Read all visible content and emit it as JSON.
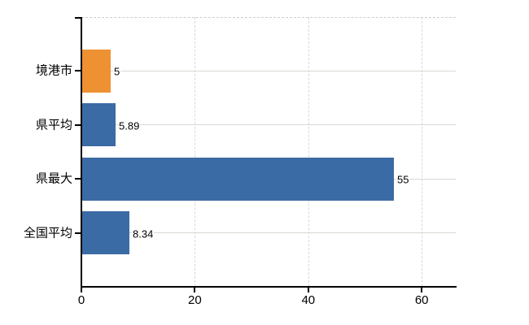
{
  "chart_data": {
    "type": "bar",
    "orientation": "horizontal",
    "title": "",
    "xlabel": "",
    "ylabel": "",
    "categories": [
      "境港市",
      "県平均",
      "県最大",
      "全国平均"
    ],
    "values": [
      5,
      5.89,
      55,
      8.34
    ],
    "value_labels": [
      "5",
      "5.89",
      "55",
      "8.34"
    ],
    "bar_colors": [
      "#EE9133",
      "#3B6BA5",
      "#3B6BA5",
      "#3B6BA5"
    ],
    "x_ticks": [
      0,
      20,
      40,
      60
    ],
    "x_tick_labels": [
      "0",
      "20",
      "40",
      "60"
    ],
    "xlim": [
      0,
      66
    ],
    "grid": true,
    "legend": "none",
    "highlight_category": "境港市"
  },
  "colors": {
    "bar_blue": "#3B6BA5",
    "bar_orange": "#EE9133",
    "grid_horizontal": "#d6dad2",
    "grid_vertical": "#d9d9d9",
    "axis": "#000000",
    "background": "#ffffff",
    "text": "#000000"
  }
}
